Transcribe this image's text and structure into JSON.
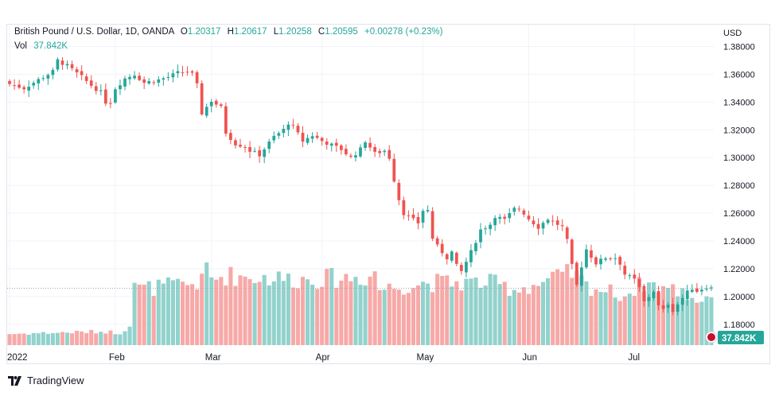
{
  "header": {
    "symbol": "British Pound / U.S. Dollar, 1D, OANDA",
    "open_label": "O",
    "open": "1.20317",
    "high_label": "H",
    "high": "1.20617",
    "low_label": "L",
    "low": "1.20258",
    "close_label": "C",
    "close": "1.20595",
    "change": "+0.00278 (+0.23%)",
    "vol_label": "Vol",
    "vol_value": "37.842K"
  },
  "price_scale": {
    "currency": "USD",
    "current_price_line": 1.20595
  },
  "volume_badge": "37.842K",
  "footer": {
    "brand": "TradingView"
  },
  "colors": {
    "up": "#26a69a",
    "down": "#ef5350",
    "up_vol": "#92d2cc",
    "down_vol": "#f7a9a7",
    "grid": "#f0f3fa"
  },
  "chart_data": {
    "type": "candlestick",
    "y_axis": {
      "ylim": [
        1.165,
        1.39
      ],
      "ticks": [
        "1.38000",
        "1.36000",
        "1.34000",
        "1.32000",
        "1.30000",
        "1.28000",
        "1.26000",
        "1.24000",
        "1.22000",
        "1.20000",
        "1.18000"
      ]
    },
    "x_axis": {
      "labels": [
        {
          "text": "2022",
          "i": 0
        },
        {
          "text": "Feb",
          "i": 22
        },
        {
          "text": "Mar",
          "i": 42
        },
        {
          "text": "Apr",
          "i": 65
        },
        {
          "text": "May",
          "i": 86
        },
        {
          "text": "Jun",
          "i": 108
        },
        {
          "text": "Jul",
          "i": 130
        }
      ]
    },
    "close_path": [
      [
        0,
        1.353
      ],
      [
        3,
        1.35
      ],
      [
        6,
        1.356
      ],
      [
        9,
        1.362
      ],
      [
        10,
        1.37
      ],
      [
        12,
        1.366
      ],
      [
        15,
        1.358
      ],
      [
        17,
        1.352
      ],
      [
        19,
        1.347
      ],
      [
        20,
        1.34
      ],
      [
        21,
        1.34
      ],
      [
        22,
        1.35
      ],
      [
        24,
        1.357
      ],
      [
        26,
        1.36
      ],
      [
        28,
        1.354
      ],
      [
        31,
        1.356
      ],
      [
        33,
        1.358
      ],
      [
        35,
        1.361
      ],
      [
        37,
        1.362
      ],
      [
        38,
        1.36
      ],
      [
        39,
        1.352
      ],
      [
        40,
        1.332
      ],
      [
        42,
        1.341
      ],
      [
        44,
        1.336
      ],
      [
        45,
        1.318
      ],
      [
        47,
        1.31
      ],
      [
        49,
        1.308
      ],
      [
        50,
        1.305
      ],
      [
        52,
        1.302
      ],
      [
        55,
        1.315
      ],
      [
        57,
        1.32
      ],
      [
        58,
        1.325
      ],
      [
        59,
        1.322
      ],
      [
        61,
        1.312
      ],
      [
        63,
        1.316
      ],
      [
        65,
        1.312
      ],
      [
        67,
        1.309
      ],
      [
        69,
        1.306
      ],
      [
        71,
        1.3
      ],
      [
        73,
        1.306
      ],
      [
        74,
        1.312
      ],
      [
        76,
        1.303
      ],
      [
        78,
        1.305
      ],
      [
        79,
        1.3
      ],
      [
        80,
        1.284
      ],
      [
        81,
        1.27
      ],
      [
        82,
        1.26
      ],
      [
        84,
        1.255
      ],
      [
        85,
        1.253
      ],
      [
        86,
        1.262
      ],
      [
        87,
        1.262
      ],
      [
        88,
        1.242
      ],
      [
        89,
        1.236
      ],
      [
        90,
        1.232
      ],
      [
        91,
        1.228
      ],
      [
        92,
        1.232
      ],
      [
        93,
        1.222
      ],
      [
        94,
        1.218
      ],
      [
        96,
        1.232
      ],
      [
        98,
        1.248
      ],
      [
        100,
        1.252
      ],
      [
        101,
        1.258
      ],
      [
        103,
        1.255
      ],
      [
        105,
        1.263
      ],
      [
        106,
        1.263
      ],
      [
        107,
        1.26
      ],
      [
        108,
        1.256
      ],
      [
        110,
        1.25
      ],
      [
        112,
        1.256
      ],
      [
        114,
        1.252
      ],
      [
        115,
        1.25
      ],
      [
        116,
        1.24
      ],
      [
        117,
        1.222
      ],
      [
        118,
        1.208
      ],
      [
        119,
        1.222
      ],
      [
        120,
        1.234
      ],
      [
        122,
        1.224
      ],
      [
        124,
        1.228
      ],
      [
        126,
        1.228
      ],
      [
        127,
        1.224
      ],
      [
        128,
        1.216
      ],
      [
        130,
        1.212
      ],
      [
        131,
        1.206
      ],
      [
        132,
        1.196
      ],
      [
        134,
        1.204
      ],
      [
        135,
        1.193
      ],
      [
        136,
        1.19
      ],
      [
        137,
        1.195
      ],
      [
        138,
        1.19
      ],
      [
        140,
        1.199
      ],
      [
        141,
        1.203
      ],
      [
        142,
        1.206
      ],
      [
        143,
        1.204
      ],
      [
        145,
        1.207
      ],
      [
        146,
        1.206
      ]
    ],
    "volume_path": [
      [
        0,
        0.14
      ],
      [
        20,
        0.17
      ],
      [
        23,
        0.15
      ],
      [
        24,
        0.2
      ],
      [
        25,
        0.26
      ],
      [
        26,
        0.8
      ],
      [
        27,
        0.7
      ],
      [
        40,
        0.78
      ],
      [
        41,
        1.0
      ],
      [
        42,
        0.82
      ],
      [
        45,
        0.87
      ],
      [
        60,
        0.82
      ],
      [
        75,
        0.85
      ],
      [
        76,
        0.93
      ],
      [
        77,
        0.7
      ],
      [
        87,
        0.78
      ],
      [
        100,
        0.78
      ],
      [
        105,
        0.7
      ],
      [
        110,
        0.76
      ],
      [
        114,
        0.84
      ],
      [
        117,
        0.9
      ],
      [
        120,
        0.74
      ],
      [
        128,
        0.62
      ],
      [
        132,
        0.78
      ],
      [
        136,
        0.72
      ],
      [
        140,
        0.66
      ],
      [
        143,
        0.56
      ],
      [
        146,
        0.62
      ]
    ],
    "n_bars": 147
  }
}
